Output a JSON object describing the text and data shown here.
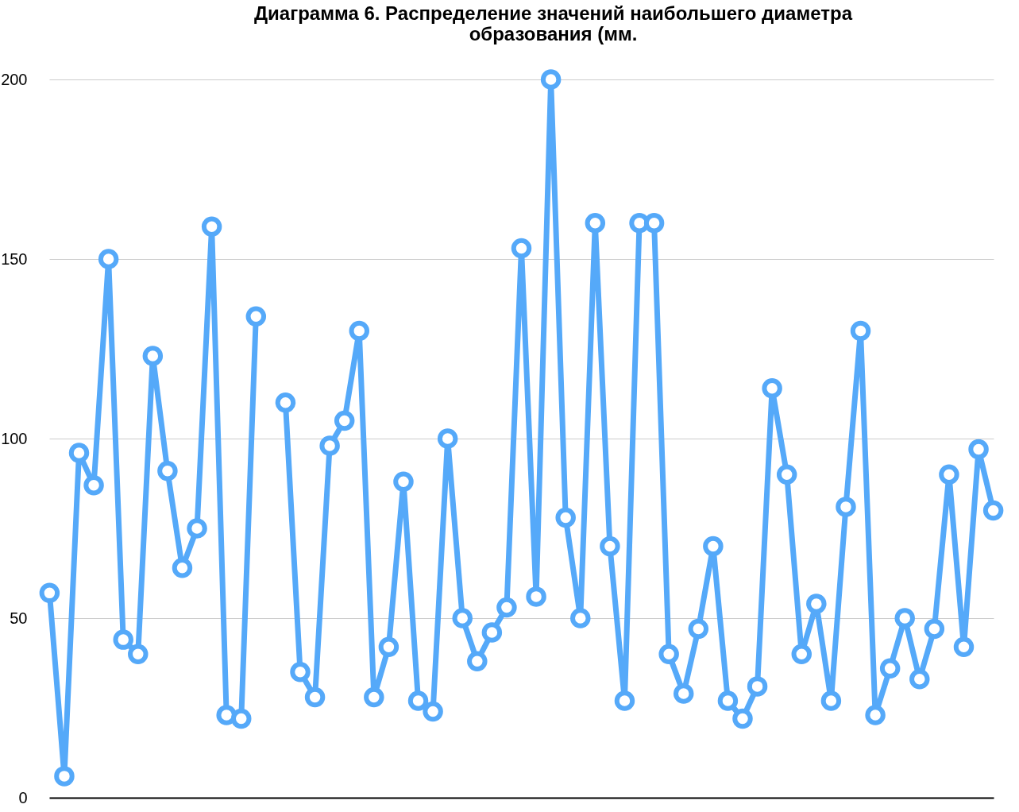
{
  "chart_data": {
    "type": "line",
    "title": "Диаграмма 6. Распределение значений наибольшего диаметра образования (мм.",
    "categories": [
      null,
      null,
      null,
      null,
      null,
      null,
      null,
      null,
      null,
      null,
      null,
      null,
      null,
      null,
      null,
      null,
      null,
      null,
      null,
      null,
      null,
      null,
      null,
      null,
      null,
      null,
      null,
      null,
      null,
      null,
      null,
      null,
      null,
      null,
      null,
      null,
      null,
      null,
      null,
      null,
      null,
      null,
      null,
      null,
      null,
      null,
      null,
      null,
      null,
      null,
      null,
      null,
      null,
      null,
      null,
      null,
      null,
      null,
      null,
      null,
      null,
      null,
      null,
      null,
      null
    ],
    "series": [
      {
        "color": "#55a9f9",
        "values": [
          57,
          6,
          96,
          87,
          150,
          44,
          40,
          123,
          91,
          64,
          75,
          159,
          23,
          22,
          134,
          null,
          null,
          null,
          null,
          null,
          null,
          null,
          null,
          null,
          null,
          null,
          null,
          null,
          null,
          null,
          null,
          null,
          null,
          null,
          null,
          null,
          null,
          null,
          null,
          null,
          null,
          null,
          null,
          null,
          null,
          null,
          null,
          null,
          null,
          null,
          null,
          null,
          null,
          null,
          null,
          null,
          null,
          null,
          null,
          null,
          null,
          null,
          null,
          null,
          null
        ]
      },
      {
        "color": "#55a9f9",
        "values": [
          null,
          null,
          null,
          null,
          null,
          null,
          null,
          null,
          null,
          null,
          null,
          null,
          null,
          null,
          null,
          null,
          110,
          35,
          28,
          98,
          105,
          130,
          28,
          42,
          88,
          27,
          24,
          100,
          50,
          38,
          46,
          53,
          153,
          56,
          200,
          78,
          50,
          160,
          70,
          27,
          160,
          160,
          40,
          29,
          47,
          70,
          27,
          22,
          31,
          114,
          90,
          40,
          54,
          27,
          81,
          130,
          23,
          36,
          50,
          33,
          47,
          90,
          42,
          97,
          80
        ]
      }
    ],
    "ylim": [
      0,
      200
    ],
    "yticks": [
      0,
      50,
      100,
      150,
      200
    ],
    "grid": "y",
    "marker": "circle",
    "line_style": "solid",
    "tick_labels": "y"
  }
}
